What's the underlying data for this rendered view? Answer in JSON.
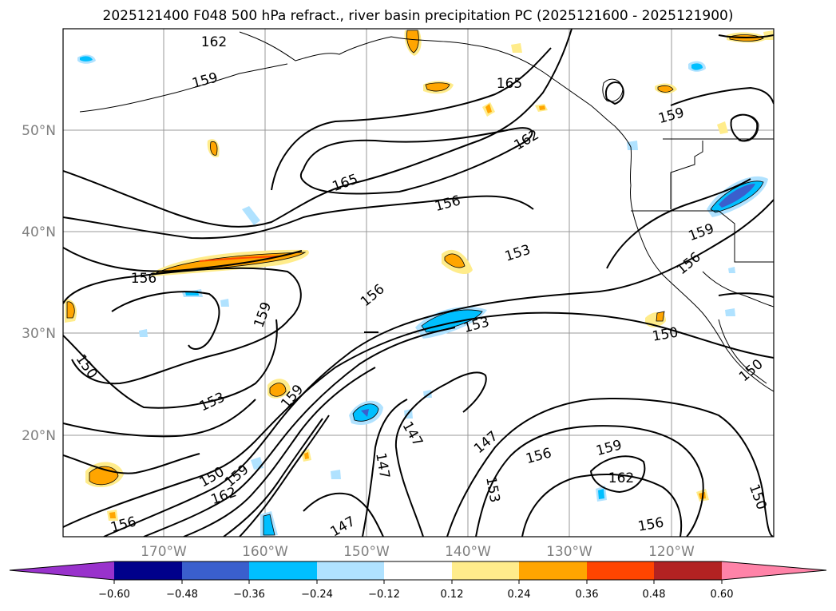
{
  "title": "2025121400 F048 500 hPa refract., river basin precipitation PC (2025121600 - 2025121900)",
  "map": {
    "lat_labels": [
      "50°N",
      "40°N",
      "30°N",
      "20°N"
    ],
    "lon_labels": [
      "170°W",
      "160°W",
      "150°W",
      "140°W",
      "130°W",
      "120°W"
    ],
    "grid_color": "#999999",
    "contour_labels": [
      "162",
      "159",
      "165",
      "162",
      "159",
      "165",
      "156",
      "153",
      "156",
      "156",
      "159",
      "153",
      "156",
      "159",
      "150",
      "153",
      "150",
      "147",
      "147",
      "147",
      "147",
      "150",
      "159",
      "162",
      "153",
      "156",
      "159",
      "162",
      "156",
      "150",
      "159",
      "156",
      "150"
    ]
  },
  "colorbar": {
    "ticks": [
      "−0.60",
      "−0.48",
      "−0.36",
      "−0.24",
      "−0.12",
      "0.12",
      "0.24",
      "0.36",
      "0.48",
      "0.60"
    ],
    "colors": [
      "#9932cc",
      "#00008b",
      "#3a5fcd",
      "#00bfff",
      "#b0e2ff",
      "#ffffff",
      "#ffec8b",
      "#ffa500",
      "#ff4500",
      "#b22222",
      "#ff83a8"
    ]
  }
}
